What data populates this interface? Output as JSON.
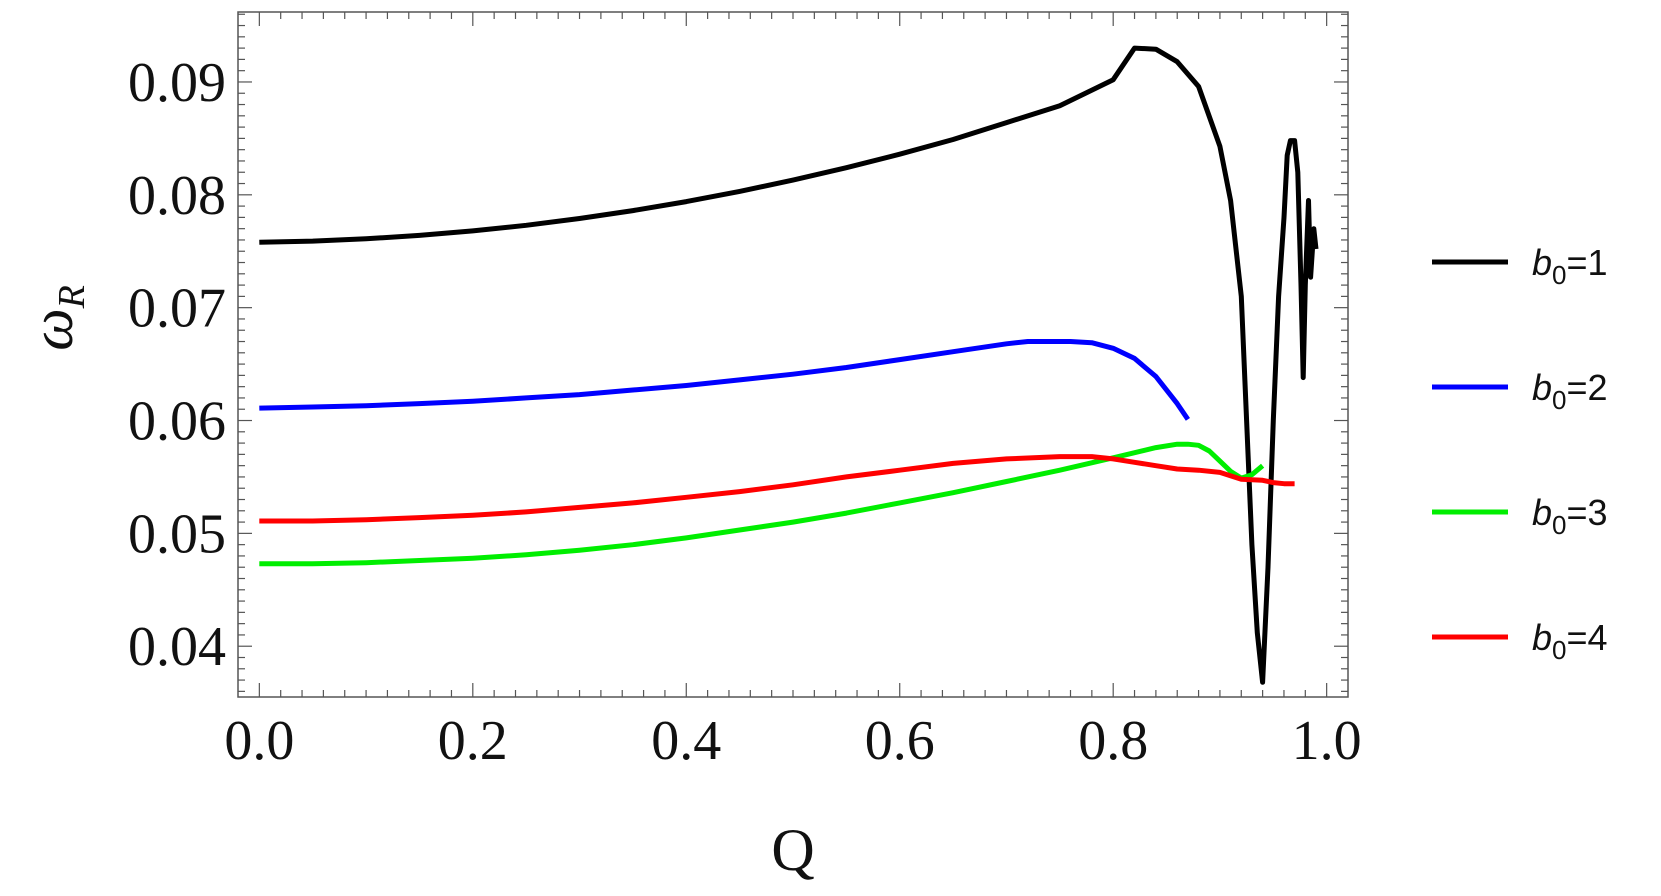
{
  "chart_data": {
    "type": "line",
    "xlabel": "Q",
    "ylabel_main": "ω",
    "ylabel_sub": "R",
    "xlim": [
      -0.02,
      1.02
    ],
    "ylim": [
      0.0355,
      0.0962
    ],
    "xticks": [
      0.0,
      0.2,
      0.4,
      0.6,
      0.8,
      1.0
    ],
    "xtick_labels": [
      "0.0",
      "0.2",
      "0.4",
      "0.6",
      "0.8",
      "1.0"
    ],
    "yticks": [
      0.04,
      0.05,
      0.06,
      0.07,
      0.08,
      0.09
    ],
    "ytick_labels": [
      "0.04",
      "0.05",
      "0.06",
      "0.07",
      "0.08",
      "0.09"
    ],
    "grid": false,
    "legend_position": "right",
    "series": [
      {
        "name_main": "b",
        "name_sub": "0",
        "name_rest": "=1",
        "color": "#000000",
        "x": [
          0.0,
          0.05,
          0.1,
          0.15,
          0.2,
          0.25,
          0.3,
          0.35,
          0.4,
          0.45,
          0.5,
          0.55,
          0.6,
          0.65,
          0.7,
          0.75,
          0.8,
          0.82,
          0.84,
          0.86,
          0.88,
          0.9,
          0.91,
          0.92,
          0.925,
          0.93,
          0.935,
          0.94,
          0.945,
          0.95,
          0.955,
          0.96,
          0.963,
          0.966,
          0.97,
          0.973,
          0.976,
          0.978,
          0.98,
          0.983,
          0.985,
          0.988,
          0.99
        ],
        "y": [
          0.0758,
          0.0759,
          0.0761,
          0.0764,
          0.0768,
          0.0773,
          0.0779,
          0.0786,
          0.0794,
          0.0803,
          0.0813,
          0.0824,
          0.0836,
          0.0849,
          0.0864,
          0.0879,
          0.0902,
          0.093,
          0.0929,
          0.0918,
          0.0896,
          0.0843,
          0.0795,
          0.071,
          0.06,
          0.049,
          0.0412,
          0.0368,
          0.047,
          0.06,
          0.071,
          0.078,
          0.0835,
          0.0848,
          0.0848,
          0.082,
          0.072,
          0.0638,
          0.072,
          0.0795,
          0.0727,
          0.077,
          0.0752
        ]
      },
      {
        "name_main": "b",
        "name_sub": "0",
        "name_rest": "=2",
        "color": "#0000ff",
        "x": [
          0.0,
          0.05,
          0.1,
          0.15,
          0.2,
          0.25,
          0.3,
          0.35,
          0.4,
          0.45,
          0.5,
          0.55,
          0.6,
          0.65,
          0.7,
          0.72,
          0.74,
          0.76,
          0.78,
          0.8,
          0.82,
          0.84,
          0.86,
          0.87
        ],
        "y": [
          0.0611,
          0.0612,
          0.0613,
          0.0615,
          0.0617,
          0.062,
          0.0623,
          0.0627,
          0.0631,
          0.0636,
          0.0641,
          0.0647,
          0.0654,
          0.0661,
          0.0668,
          0.067,
          0.067,
          0.067,
          0.0669,
          0.0664,
          0.0655,
          0.0639,
          0.0615,
          0.0601
        ]
      },
      {
        "name_main": "b",
        "name_sub": "0",
        "name_rest": "=3",
        "color": "#00ee00",
        "x": [
          0.0,
          0.05,
          0.1,
          0.15,
          0.2,
          0.25,
          0.3,
          0.35,
          0.4,
          0.45,
          0.5,
          0.55,
          0.6,
          0.65,
          0.7,
          0.75,
          0.8,
          0.84,
          0.86,
          0.87,
          0.88,
          0.89,
          0.9,
          0.91,
          0.92,
          0.93,
          0.94
        ],
        "y": [
          0.0473,
          0.0473,
          0.0474,
          0.0476,
          0.0478,
          0.0481,
          0.0485,
          0.049,
          0.0496,
          0.0503,
          0.051,
          0.0518,
          0.0527,
          0.0536,
          0.0546,
          0.0556,
          0.0567,
          0.0576,
          0.0579,
          0.0579,
          0.0578,
          0.0573,
          0.0564,
          0.0555,
          0.0549,
          0.0552,
          0.056
        ]
      },
      {
        "name_main": "b",
        "name_sub": "0",
        "name_rest": "=4",
        "color": "#ff0000",
        "x": [
          0.0,
          0.05,
          0.1,
          0.15,
          0.2,
          0.25,
          0.3,
          0.35,
          0.4,
          0.45,
          0.5,
          0.55,
          0.6,
          0.65,
          0.7,
          0.75,
          0.78,
          0.8,
          0.82,
          0.84,
          0.86,
          0.88,
          0.9,
          0.92,
          0.94,
          0.95,
          0.96,
          0.97
        ],
        "y": [
          0.0511,
          0.0511,
          0.0512,
          0.0514,
          0.0516,
          0.0519,
          0.0523,
          0.0527,
          0.0532,
          0.0537,
          0.0543,
          0.055,
          0.0556,
          0.0562,
          0.0566,
          0.0568,
          0.0568,
          0.0566,
          0.0563,
          0.056,
          0.0557,
          0.0556,
          0.0554,
          0.0548,
          0.0547,
          0.0545,
          0.0544,
          0.0544
        ]
      }
    ]
  }
}
